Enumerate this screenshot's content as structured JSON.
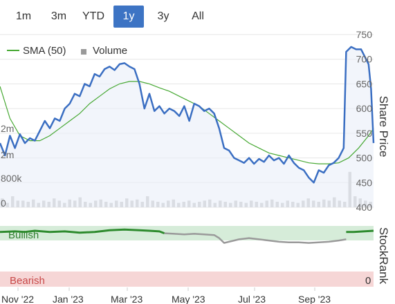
{
  "range_selector": {
    "buttons": [
      "1m",
      "3m",
      "YTD",
      "1y",
      "3y",
      "All"
    ],
    "active": "1y"
  },
  "colors": {
    "price_line": "#3a6ec2",
    "sma_line": "#46a832",
    "volume_bar": "#c4c4c4",
    "bullish_band": "#d6ecd9",
    "bearish_band": "#f6d6d6",
    "stockrank_bullish": "#2e8b2e",
    "stockrank_neutral": "#9a9a9a",
    "active_button": "#3d74c4"
  },
  "chart_data": [
    {
      "type": "line",
      "legend": [
        {
          "name": "SMA (50)",
          "symbol": "line"
        },
        {
          "name": "Volume",
          "symbol": "square"
        }
      ],
      "legend_position": "top-left",
      "ylabel": "Share Price",
      "ylim": [
        400,
        750
      ],
      "yticks": [
        750,
        700,
        650,
        600,
        550,
        500,
        450,
        400
      ],
      "volume_ticks": [
        "2m",
        "2m",
        "800k",
        "0"
      ],
      "grid": true,
      "x_tick_labels": [
        "Nov '22",
        "Jan '23",
        "Mar '23",
        "May '23",
        "Jul '23",
        "Sep '23"
      ],
      "price_series": [
        {
          "x": 0,
          "y": 530
        },
        {
          "x": 2,
          "y": 505
        },
        {
          "x": 4,
          "y": 545
        },
        {
          "x": 6,
          "y": 520
        },
        {
          "x": 8,
          "y": 548
        },
        {
          "x": 10,
          "y": 530
        },
        {
          "x": 12,
          "y": 540
        },
        {
          "x": 14,
          "y": 535
        },
        {
          "x": 16,
          "y": 555
        },
        {
          "x": 18,
          "y": 575
        },
        {
          "x": 20,
          "y": 560
        },
        {
          "x": 22,
          "y": 580
        },
        {
          "x": 24,
          "y": 575
        },
        {
          "x": 26,
          "y": 600
        },
        {
          "x": 28,
          "y": 610
        },
        {
          "x": 30,
          "y": 630
        },
        {
          "x": 32,
          "y": 625
        },
        {
          "x": 34,
          "y": 650
        },
        {
          "x": 36,
          "y": 645
        },
        {
          "x": 38,
          "y": 670
        },
        {
          "x": 40,
          "y": 665
        },
        {
          "x": 42,
          "y": 680
        },
        {
          "x": 44,
          "y": 685
        },
        {
          "x": 46,
          "y": 678
        },
        {
          "x": 48,
          "y": 690
        },
        {
          "x": 50,
          "y": 692
        },
        {
          "x": 52,
          "y": 685
        },
        {
          "x": 54,
          "y": 680
        },
        {
          "x": 56,
          "y": 650
        },
        {
          "x": 58,
          "y": 600
        },
        {
          "x": 60,
          "y": 630
        },
        {
          "x": 62,
          "y": 595
        },
        {
          "x": 64,
          "y": 605
        },
        {
          "x": 66,
          "y": 590
        },
        {
          "x": 68,
          "y": 600
        },
        {
          "x": 70,
          "y": 595
        },
        {
          "x": 72,
          "y": 585
        },
        {
          "x": 74,
          "y": 605
        },
        {
          "x": 76,
          "y": 575
        },
        {
          "x": 78,
          "y": 610
        },
        {
          "x": 80,
          "y": 605
        },
        {
          "x": 82,
          "y": 595
        },
        {
          "x": 84,
          "y": 600
        },
        {
          "x": 86,
          "y": 590
        },
        {
          "x": 88,
          "y": 560
        },
        {
          "x": 90,
          "y": 520
        },
        {
          "x": 92,
          "y": 515
        },
        {
          "x": 94,
          "y": 500
        },
        {
          "x": 96,
          "y": 495
        },
        {
          "x": 98,
          "y": 490
        },
        {
          "x": 100,
          "y": 500
        },
        {
          "x": 102,
          "y": 488
        },
        {
          "x": 104,
          "y": 498
        },
        {
          "x": 106,
          "y": 492
        },
        {
          "x": 108,
          "y": 505
        },
        {
          "x": 110,
          "y": 495
        },
        {
          "x": 112,
          "y": 500
        },
        {
          "x": 114,
          "y": 488
        },
        {
          "x": 116,
          "y": 505
        },
        {
          "x": 118,
          "y": 490
        },
        {
          "x": 120,
          "y": 480
        },
        {
          "x": 122,
          "y": 475
        },
        {
          "x": 124,
          "y": 460
        },
        {
          "x": 126,
          "y": 450
        },
        {
          "x": 128,
          "y": 475
        },
        {
          "x": 130,
          "y": 470
        },
        {
          "x": 132,
          "y": 485
        },
        {
          "x": 134,
          "y": 490
        },
        {
          "x": 136,
          "y": 500
        },
        {
          "x": 138,
          "y": 520
        },
        {
          "x": 139,
          "y": 715
        },
        {
          "x": 141,
          "y": 725
        },
        {
          "x": 143,
          "y": 720
        },
        {
          "x": 145,
          "y": 720
        },
        {
          "x": 147,
          "y": 700
        },
        {
          "x": 148,
          "y": 690
        },
        {
          "x": 149,
          "y": 640
        },
        {
          "x": 150,
          "y": 530
        }
      ],
      "sma_series": [
        {
          "x": 0,
          "y": 645
        },
        {
          "x": 4,
          "y": 580
        },
        {
          "x": 8,
          "y": 545
        },
        {
          "x": 12,
          "y": 535
        },
        {
          "x": 16,
          "y": 535
        },
        {
          "x": 20,
          "y": 545
        },
        {
          "x": 24,
          "y": 560
        },
        {
          "x": 28,
          "y": 575
        },
        {
          "x": 32,
          "y": 590
        },
        {
          "x": 36,
          "y": 610
        },
        {
          "x": 40,
          "y": 625
        },
        {
          "x": 44,
          "y": 640
        },
        {
          "x": 48,
          "y": 650
        },
        {
          "x": 52,
          "y": 655
        },
        {
          "x": 56,
          "y": 655
        },
        {
          "x": 60,
          "y": 650
        },
        {
          "x": 64,
          "y": 642
        },
        {
          "x": 68,
          "y": 635
        },
        {
          "x": 72,
          "y": 625
        },
        {
          "x": 76,
          "y": 615
        },
        {
          "x": 80,
          "y": 605
        },
        {
          "x": 84,
          "y": 590
        },
        {
          "x": 88,
          "y": 575
        },
        {
          "x": 92,
          "y": 560
        },
        {
          "x": 96,
          "y": 545
        },
        {
          "x": 100,
          "y": 530
        },
        {
          "x": 104,
          "y": 520
        },
        {
          "x": 108,
          "y": 510
        },
        {
          "x": 112,
          "y": 505
        },
        {
          "x": 116,
          "y": 500
        },
        {
          "x": 120,
          "y": 495
        },
        {
          "x": 124,
          "y": 490
        },
        {
          "x": 128,
          "y": 488
        },
        {
          "x": 132,
          "y": 488
        },
        {
          "x": 136,
          "y": 490
        },
        {
          "x": 140,
          "y": 500
        },
        {
          "x": 144,
          "y": 520
        },
        {
          "x": 148,
          "y": 545
        },
        {
          "x": 150,
          "y": 560
        }
      ],
      "volume_series": [
        0.4,
        0.2,
        0.5,
        0.3,
        0.3,
        0.25,
        0.35,
        0.2,
        0.3,
        0.25,
        0.4,
        0.3,
        0.2,
        0.35,
        0.3,
        0.45,
        0.25,
        0.2,
        0.3,
        0.35,
        0.25,
        0.2,
        0.3,
        0.25,
        0.4,
        0.3,
        0.35,
        0.25,
        0.5,
        0.3,
        0.25,
        0.2,
        0.3,
        0.35,
        0.2,
        0.25,
        0.3,
        0.2,
        0.25,
        0.3,
        0.35,
        0.2,
        0.3,
        0.25,
        0.2,
        0.3,
        0.25,
        0.2,
        0.3,
        0.25,
        0.2,
        0.3,
        0.35,
        0.25,
        0.2,
        0.3,
        0.25,
        0.2,
        0.3,
        0.4,
        0.3,
        0.25,
        0.35,
        0.3,
        0.45,
        0.3,
        0.25,
        1.6,
        0.5,
        0.4,
        0.3,
        0.25
      ]
    },
    {
      "type": "line",
      "ylabel": "StockRank",
      "bands": [
        {
          "label": "Bullish"
        },
        {
          "label": "Bearish",
          "value_label": "0"
        }
      ],
      "series": [
        {
          "state": "bullish",
          "points": [
            {
              "x": 0,
              "y": 90
            },
            {
              "x": 6,
              "y": 91
            },
            {
              "x": 10,
              "y": 90
            },
            {
              "x": 14,
              "y": 92
            },
            {
              "x": 20,
              "y": 90
            },
            {
              "x": 26,
              "y": 91
            },
            {
              "x": 32,
              "y": 89
            },
            {
              "x": 38,
              "y": 90
            },
            {
              "x": 44,
              "y": 93
            },
            {
              "x": 50,
              "y": 94
            },
            {
              "x": 56,
              "y": 93
            },
            {
              "x": 60,
              "y": 92
            },
            {
              "x": 64,
              "y": 91
            },
            {
              "x": 66,
              "y": 88
            }
          ]
        },
        {
          "state": "neutral",
          "points": [
            {
              "x": 66,
              "y": 88
            },
            {
              "x": 70,
              "y": 87
            },
            {
              "x": 74,
              "y": 86
            },
            {
              "x": 78,
              "y": 87
            },
            {
              "x": 82,
              "y": 86
            },
            {
              "x": 86,
              "y": 85
            },
            {
              "x": 88,
              "y": 80
            },
            {
              "x": 90,
              "y": 72
            },
            {
              "x": 92,
              "y": 74
            },
            {
              "x": 96,
              "y": 78
            },
            {
              "x": 100,
              "y": 80
            },
            {
              "x": 104,
              "y": 78
            },
            {
              "x": 108,
              "y": 76
            },
            {
              "x": 112,
              "y": 74
            },
            {
              "x": 116,
              "y": 73
            },
            {
              "x": 120,
              "y": 73
            },
            {
              "x": 124,
              "y": 72
            },
            {
              "x": 128,
              "y": 73
            },
            {
              "x": 132,
              "y": 74
            },
            {
              "x": 136,
              "y": 76
            },
            {
              "x": 139,
              "y": 78
            }
          ]
        },
        {
          "state": "bullish",
          "points": [
            {
              "x": 139,
              "y": 90
            },
            {
              "x": 142,
              "y": 90
            },
            {
              "x": 146,
              "y": 91
            },
            {
              "x": 150,
              "y": 92
            }
          ]
        }
      ]
    }
  ]
}
